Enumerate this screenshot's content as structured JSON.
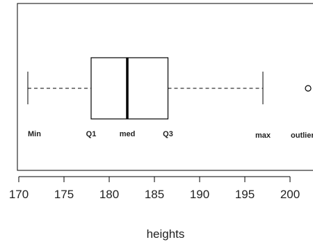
{
  "chart_data": {
    "type": "boxplot",
    "orientation": "horizontal",
    "xlabel": "heights",
    "xlim": [
      170,
      203.5
    ],
    "x_ticks": [
      "170",
      "175",
      "180",
      "185",
      "190",
      "195",
      "200"
    ],
    "box": {
      "min": 171,
      "q1": 178,
      "median": 182,
      "q3": 186.5,
      "max": 197
    },
    "outliers": [
      202
    ],
    "annotations": [
      {
        "text": "Min",
        "x": 171
      },
      {
        "text": "Q1",
        "x": 178
      },
      {
        "text": "med",
        "x": 182
      },
      {
        "text": "Q3",
        "x": 186.5
      },
      {
        "text": "max",
        "x": 197
      },
      {
        "text": "outlier",
        "x": 202
      }
    ],
    "grid": false,
    "legend": "none"
  }
}
